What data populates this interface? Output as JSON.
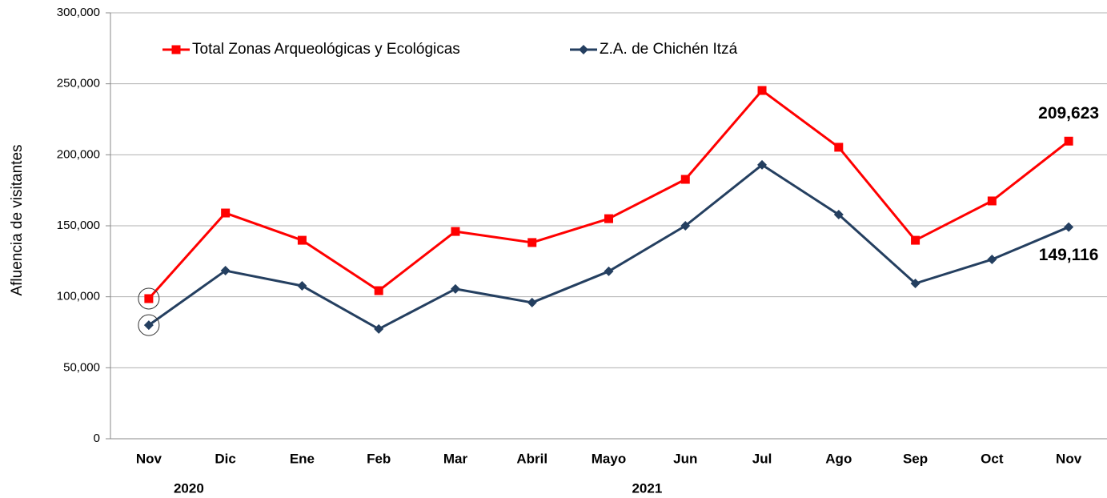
{
  "chart_data": {
    "type": "line",
    "y_label": "Afluencia de visitantes",
    "categories": [
      "Nov",
      "Dic",
      "Ene",
      "Feb",
      "Mar",
      "Abril",
      "Mayo",
      "Jun",
      "Jul",
      "Ago",
      "Sep",
      "Oct",
      "Nov"
    ],
    "year_labels": [
      "2020",
      "2021"
    ],
    "series": [
      {
        "name": "Total Zonas Arqueológicas y Ecológicas",
        "color": "#ff0000",
        "marker": "square",
        "values": [
          98700,
          159000,
          139800,
          104300,
          146000,
          138200,
          155000,
          182700,
          245300,
          205300,
          139800,
          167500,
          209623
        ],
        "value_labels": [
          null,
          null,
          null,
          null,
          null,
          null,
          null,
          null,
          null,
          null,
          null,
          null,
          "209,623"
        ]
      },
      {
        "name": "Z.A. de Chichén Itzá",
        "color": "#243f60",
        "marker": "diamond",
        "values": [
          80000,
          118400,
          107700,
          77300,
          105500,
          95900,
          117900,
          150000,
          192900,
          157900,
          109400,
          126300,
          149116
        ],
        "value_labels": [
          null,
          null,
          null,
          null,
          null,
          null,
          null,
          null,
          null,
          null,
          null,
          null,
          "149,116"
        ]
      }
    ],
    "ylim": [
      0,
      300000
    ],
    "yticks": [
      0,
      {
        "value": 50000,
        "label": "50,000"
      },
      {
        "value": 100000,
        "label": "100,000"
      },
      {
        "value": 150000,
        "label": "150,000"
      },
      {
        "value": 200000,
        "label": "200,000"
      },
      {
        "value": 250000,
        "label": "250,000"
      },
      {
        "value": 300000,
        "label": "300,000"
      }
    ],
    "grid": true,
    "legend": "top"
  }
}
